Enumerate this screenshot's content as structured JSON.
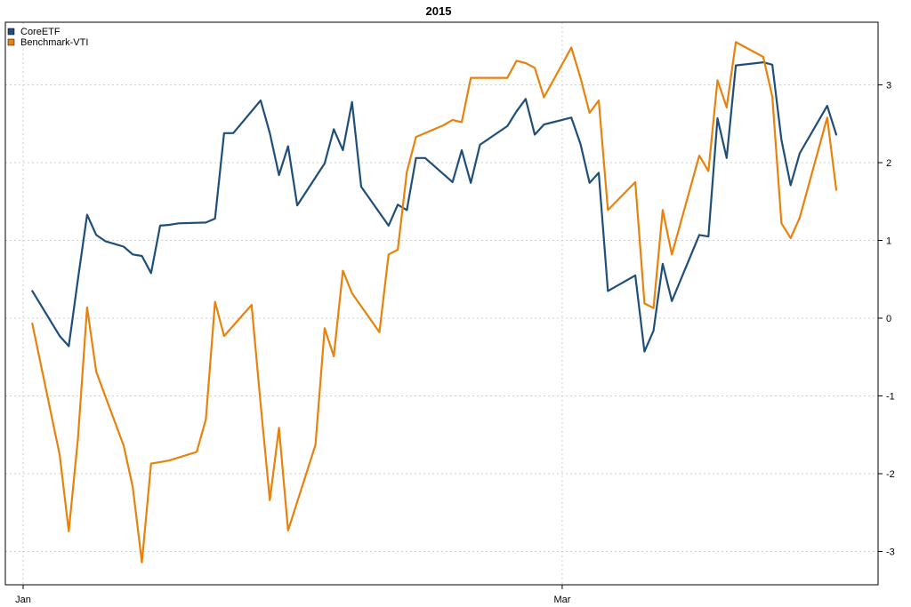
{
  "chart_data": {
    "type": "line",
    "title": "2015",
    "xlabel": "",
    "ylabel": "",
    "x_tick_labels": [
      "Jan",
      "Mar"
    ],
    "x_tick_days": [
      1,
      60
    ],
    "y_ticks": [
      -3,
      -2,
      -1,
      0,
      1,
      2,
      3
    ],
    "ylim": [
      -3.4,
      3.6
    ],
    "xlim": [
      1,
      92
    ],
    "grid": true,
    "legend_position": "top-left",
    "colors": {
      "CoreETF": "#1f4e79",
      "Benchmark-VTI": "#e8820c"
    },
    "series": [
      {
        "name": "CoreETF",
        "x": [
          2,
          5,
          6,
          7,
          8,
          9,
          10,
          12,
          13,
          14,
          15,
          16,
          17,
          18,
          21,
          22,
          23,
          24,
          27,
          28,
          29,
          30,
          31,
          34,
          35,
          36,
          37,
          38,
          41,
          42,
          43,
          44,
          45,
          48,
          49,
          50,
          51,
          54,
          55,
          56,
          57,
          58,
          59,
          61,
          62,
          63,
          64,
          65,
          68,
          69,
          70,
          71,
          72,
          75,
          76,
          77,
          78,
          79,
          82,
          83,
          84,
          85,
          86,
          89,
          90
        ],
        "y": [
          0.35,
          -0.23,
          -0.36,
          0.5,
          1.33,
          1.07,
          0.99,
          0.92,
          0.82,
          0.8,
          0.58,
          1.19,
          1.2,
          1.22,
          1.23,
          1.28,
          2.38,
          2.38,
          2.8,
          2.38,
          1.84,
          2.21,
          1.45,
          1.99,
          2.43,
          2.16,
          2.78,
          1.69,
          1.19,
          1.46,
          1.39,
          2.06,
          2.06,
          1.75,
          2.16,
          1.74,
          2.23,
          2.47,
          2.66,
          2.82,
          2.36,
          2.49,
          2.52,
          2.58,
          2.24,
          1.74,
          1.87,
          0.35,
          0.55,
          -0.43,
          -0.16,
          0.7,
          0.22,
          1.07,
          1.05,
          2.57,
          2.06,
          3.25,
          3.29,
          3.26,
          2.29,
          1.71,
          2.12,
          2.73,
          2.36
        ]
      },
      {
        "name": "Benchmark-VTI",
        "x": [
          2,
          5,
          6,
          7,
          8,
          9,
          12,
          13,
          14,
          15,
          16,
          17,
          20,
          21,
          22,
          23,
          26,
          27,
          28,
          29,
          30,
          33,
          34,
          35,
          36,
          37,
          40,
          41,
          42,
          43,
          44,
          47,
          48,
          49,
          50,
          51,
          54,
          55,
          56,
          57,
          58,
          61,
          62,
          63,
          64,
          65,
          68,
          69,
          70,
          71,
          72,
          75,
          76,
          77,
          78,
          79,
          82,
          83,
          84,
          85,
          86,
          89,
          90
        ],
        "y": [
          -0.07,
          -1.76,
          -2.74,
          -1.55,
          0.14,
          -0.69,
          -1.64,
          -2.17,
          -3.14,
          -1.87,
          -1.85,
          -1.83,
          -1.72,
          -1.3,
          0.21,
          -0.23,
          0.17,
          -1.11,
          -2.34,
          -1.41,
          -2.73,
          -1.63,
          -0.13,
          -0.49,
          0.61,
          0.32,
          -0.18,
          0.82,
          0.88,
          1.88,
          2.33,
          2.48,
          2.55,
          2.52,
          3.09,
          3.09,
          3.09,
          3.31,
          3.28,
          3.22,
          2.84,
          3.48,
          3.09,
          2.64,
          2.8,
          1.39,
          1.75,
          0.19,
          0.13,
          1.39,
          0.82,
          2.09,
          1.89,
          3.06,
          2.71,
          3.55,
          3.36,
          2.85,
          1.22,
          1.03,
          1.29,
          2.58,
          1.65
        ]
      }
    ]
  }
}
